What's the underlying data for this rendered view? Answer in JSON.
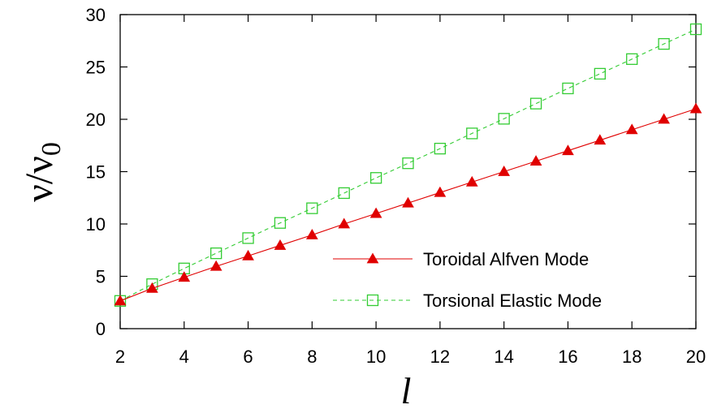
{
  "chart_data": {
    "type": "line",
    "xlabel": "l",
    "ylabel_main": "ν/ν",
    "ylabel_sub": "0",
    "xlim": [
      2,
      20
    ],
    "ylim": [
      0,
      30
    ],
    "xticks": [
      2,
      4,
      6,
      8,
      10,
      12,
      14,
      16,
      18,
      20
    ],
    "yticks": [
      0,
      5,
      10,
      15,
      20,
      25,
      30
    ],
    "grid": false,
    "legend": "bottom-right",
    "x": [
      2,
      3,
      4,
      5,
      6,
      7,
      8,
      9,
      10,
      11,
      12,
      13,
      14,
      15,
      16,
      17,
      18,
      19,
      20
    ],
    "series": [
      {
        "name": "Toroidal Alfven Mode",
        "color": "#e00000",
        "marker": "filled-triangle",
        "line": "solid",
        "values": [
          2.65,
          3.85,
          4.9,
          5.95,
          6.95,
          7.95,
          8.95,
          10.0,
          11.0,
          12.0,
          13.0,
          14.0,
          15.0,
          16.0,
          17.0,
          18.0,
          19.0,
          20.0,
          21.0
        ]
      },
      {
        "name": "Torsional Elastic Mode",
        "color": "#33cc33",
        "marker": "open-square",
        "line": "dashed",
        "values": [
          2.65,
          4.25,
          5.75,
          7.2,
          8.65,
          10.1,
          11.5,
          12.95,
          14.4,
          15.8,
          17.2,
          18.65,
          20.05,
          21.5,
          22.95,
          24.35,
          25.75,
          27.2,
          28.6
        ]
      }
    ]
  }
}
